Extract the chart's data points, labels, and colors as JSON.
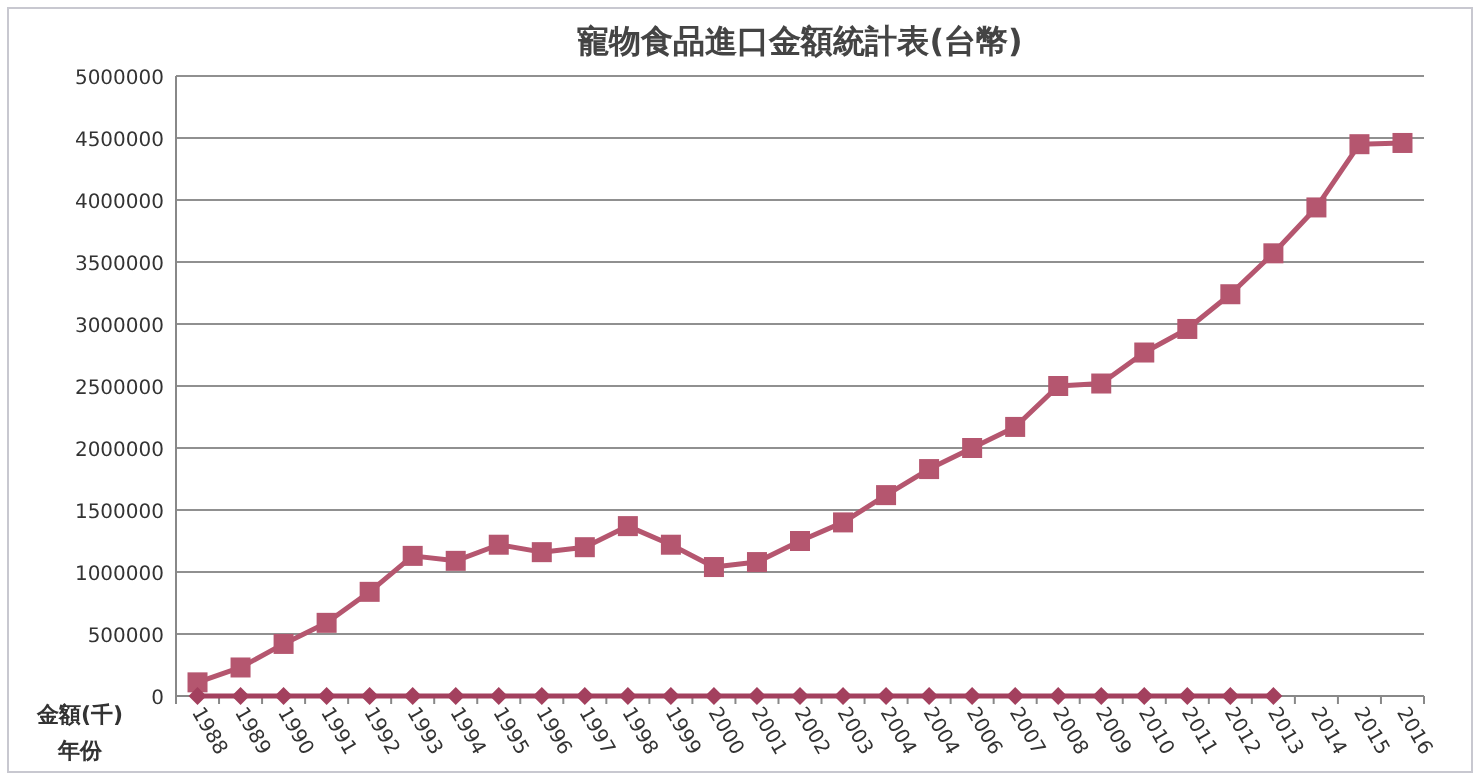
{
  "chart_data": {
    "type": "line",
    "title": "寵物食品進口金額統計表(台幣)",
    "xlabel": "年份",
    "ylabel": "金額(千)",
    "categories": [
      "1988",
      "1989",
      "1990",
      "1991",
      "1992",
      "1993",
      "1994",
      "1995",
      "1996",
      "1997",
      "1998",
      "1999",
      "2000",
      "2001",
      "2002",
      "2003",
      "2004",
      "2004",
      "2006",
      "2007",
      "2008",
      "2009",
      "2010",
      "2011",
      "2012",
      "2013",
      "2014",
      "2015",
      "2016"
    ],
    "series": [
      {
        "color": "#b5566f",
        "marker": "square",
        "values": [
          110000,
          230000,
          420000,
          590000,
          840000,
          1130000,
          1090000,
          1220000,
          1160000,
          1200000,
          1370000,
          1220000,
          1040000,
          1080000,
          1250000,
          1400000,
          1620000,
          1830000,
          2000000,
          2170000,
          2500000,
          2520000,
          2770000,
          2960000,
          3240000,
          3570000,
          3940000,
          4450000,
          4460000
        ]
      },
      {
        "color": "#a3405e",
        "marker": "diamond",
        "values": [
          0,
          0,
          0,
          0,
          0,
          0,
          0,
          0,
          0,
          0,
          0,
          0,
          0,
          0,
          0,
          0,
          0,
          0,
          0,
          0,
          0,
          0,
          0,
          0,
          0,
          0,
          null,
          null,
          null
        ]
      }
    ],
    "ylim": [
      0,
      5000000
    ],
    "yticks": [
      0,
      500000,
      1000000,
      1500000,
      2000000,
      2500000,
      3000000,
      3500000,
      4000000,
      4500000,
      5000000
    ],
    "grid": "y",
    "line_style": "solid"
  }
}
